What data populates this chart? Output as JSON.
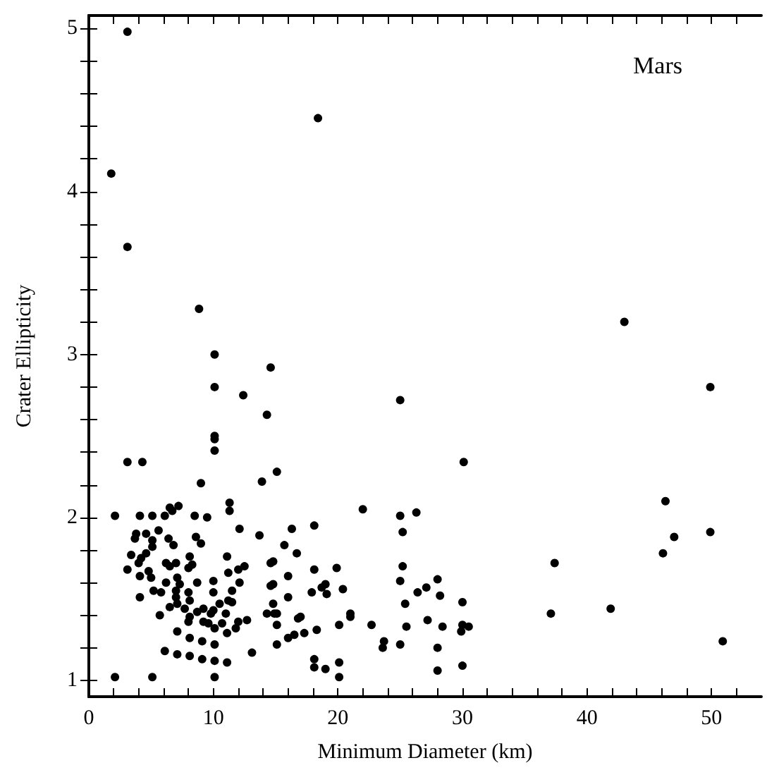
{
  "chart_data": {
    "type": "scatter",
    "xlabel": "Minimum Diameter (km)",
    "ylabel": "Crater Ellipticity",
    "annotations": [
      "Mars"
    ],
    "xlim": [
      0,
      54
    ],
    "ylim": [
      0.9,
      5.08
    ],
    "xticks": [
      0,
      {
        "value": 2,
        "label": null
      },
      {
        "value": 4,
        "label": null
      },
      {
        "value": 6,
        "label": null
      },
      {
        "value": 8,
        "label": null
      },
      10,
      {
        "value": 12,
        "label": null
      },
      {
        "value": 14,
        "label": null
      },
      {
        "value": 16,
        "label": null
      },
      {
        "value": 18,
        "label": null
      },
      20,
      {
        "value": 22,
        "label": null
      },
      {
        "value": 24,
        "label": null
      },
      {
        "value": 26,
        "label": null
      },
      {
        "value": 28,
        "label": null
      },
      30,
      {
        "value": 32,
        "label": null
      },
      {
        "value": 34,
        "label": null
      },
      {
        "value": 36,
        "label": null
      },
      {
        "value": 38,
        "label": null
      },
      40,
      {
        "value": 42,
        "label": null
      },
      {
        "value": 44,
        "label": null
      },
      {
        "value": 46,
        "label": null
      },
      {
        "value": 48,
        "label": null
      },
      50,
      {
        "value": 52,
        "label": null
      }
    ],
    "yticks": [
      1,
      {
        "value": 1.2,
        "label": null
      },
      {
        "value": 1.4,
        "label": null
      },
      {
        "value": 1.6,
        "label": null
      },
      {
        "value": 1.8,
        "label": null
      },
      2,
      {
        "value": 2.2,
        "label": null
      },
      {
        "value": 2.4,
        "label": null
      },
      {
        "value": 2.6,
        "label": null
      },
      {
        "value": 2.8,
        "label": null
      },
      3,
      {
        "value": 3.2,
        "label": null
      },
      {
        "value": 3.4,
        "label": null
      },
      {
        "value": 3.6,
        "label": null
      },
      {
        "value": 3.8,
        "label": null
      },
      4,
      {
        "value": 4.2,
        "label": null
      },
      {
        "value": 4.4,
        "label": null
      },
      {
        "value": 4.6,
        "label": null
      },
      {
        "value": 4.8,
        "label": null
      },
      5
    ],
    "grid": false,
    "marker": "circle",
    "series": [
      {
        "color": "#000000",
        "x": [
          9.0,
          13.9,
          2.1,
          4.1,
          5.1,
          6.1,
          6.5,
          6.7,
          7.2,
          8.5,
          9.5,
          11.3,
          11.3,
          12.1,
          13.7,
          3.8,
          3.7,
          4.6,
          5.1,
          5.6,
          5.1,
          6.4,
          6.8,
          8.6,
          9.0,
          3.4,
          4.2,
          4.6,
          3.1,
          4.0,
          4.1,
          4.8,
          5.0,
          6.2,
          6.5,
          7.0,
          6.2,
          7.1,
          7.3,
          8.1,
          8.0,
          8.3,
          8.7,
          10.0,
          10.0,
          11.1,
          11.2,
          11.5,
          12.1,
          12.0,
          12.5,
          4.1,
          5.2,
          5.8,
          7.0,
          7.0,
          8.0,
          8.1,
          6.5,
          7.1,
          7.7,
          8.7,
          9.2,
          8.1,
          8.0,
          9.2,
          9.8,
          10.0,
          10.5,
          11.0,
          11.2,
          11.5,
          9.6,
          10.1,
          10.7,
          11.1,
          11.8,
          12.0,
          12.7,
          5.7,
          7.1,
          8.1,
          9.1,
          10.1,
          6.1,
          7.1,
          8.1,
          9.1,
          10.1,
          11.1,
          13.1,
          2.1,
          5.1,
          10.1,
          14.6,
          14.8,
          14.8,
          14.6,
          14.8,
          14.3,
          14.9,
          15.1,
          15.1,
          15.1,
          15.7,
          16.3,
          16.7,
          16.0,
          16.0,
          16.0,
          16.5,
          17.3,
          16.8,
          17.0,
          18.1,
          18.1,
          17.9,
          18.3,
          18.1,
          18.1,
          19.0,
          18.7,
          19.0,
          19.1,
          19.9,
          20.4,
          20.1,
          20.1,
          20.1,
          21.0,
          21.0,
          22.0,
          22.7,
          23.7,
          23.6,
          25.0,
          25.2,
          26.3,
          25.2,
          25.0,
          25.4,
          25.5,
          25.0,
          26.4,
          27.1,
          27.2,
          28.0,
          28.2,
          28.4,
          28.0,
          28.0,
          30.0,
          30.0,
          29.9,
          30.5,
          30.0,
          15.1,
          10.1,
          10.1,
          10.1,
          10.1,
          10.1,
          3.1,
          4.3,
          8.85,
          12.4,
          14.6,
          14.3,
          18.4,
          1.8,
          3.1,
          3.1,
          49.9,
          46.3,
          47.0,
          49.9,
          46.1,
          37.4,
          37.1,
          41.9,
          50.9,
          43.0,
          25.0,
          30.1
        ],
        "values": [
          2.21,
          2.22,
          2.01,
          2.01,
          2.01,
          2.01,
          2.06,
          2.04,
          2.07,
          2.01,
          2.0,
          2.09,
          2.04,
          1.93,
          1.89,
          1.9,
          1.87,
          1.9,
          1.86,
          1.92,
          1.82,
          1.87,
          1.83,
          1.88,
          1.84,
          1.77,
          1.75,
          1.78,
          1.68,
          1.72,
          1.64,
          1.67,
          1.63,
          1.72,
          1.7,
          1.72,
          1.6,
          1.63,
          1.59,
          1.76,
          1.69,
          1.71,
          1.6,
          1.61,
          1.54,
          1.76,
          1.66,
          1.55,
          1.6,
          1.68,
          1.7,
          1.51,
          1.55,
          1.54,
          1.55,
          1.51,
          1.54,
          1.49,
          1.45,
          1.47,
          1.44,
          1.42,
          1.44,
          1.39,
          1.36,
          1.36,
          1.41,
          1.43,
          1.47,
          1.41,
          1.49,
          1.48,
          1.35,
          1.32,
          1.35,
          1.29,
          1.32,
          1.36,
          1.37,
          1.4,
          1.3,
          1.26,
          1.24,
          1.22,
          1.18,
          1.16,
          1.15,
          1.13,
          1.12,
          1.11,
          1.17,
          1.02,
          1.02,
          1.02,
          1.72,
          1.59,
          1.73,
          1.58,
          1.47,
          1.41,
          1.41,
          1.41,
          1.34,
          1.22,
          1.83,
          1.93,
          1.78,
          1.64,
          1.51,
          1.26,
          1.28,
          1.29,
          1.38,
          1.39,
          1.95,
          1.68,
          1.54,
          1.31,
          1.13,
          1.08,
          1.07,
          1.57,
          1.59,
          1.53,
          1.69,
          1.56,
          1.11,
          1.02,
          1.34,
          1.41,
          1.39,
          2.05,
          1.34,
          1.24,
          1.2,
          2.01,
          1.91,
          2.03,
          1.7,
          1.61,
          1.47,
          1.33,
          1.22,
          1.54,
          1.57,
          1.37,
          1.62,
          1.52,
          1.33,
          1.2,
          1.06,
          1.48,
          1.34,
          1.3,
          1.33,
          1.09,
          2.28,
          3.0,
          2.8,
          2.5,
          2.48,
          2.41,
          2.34,
          2.34,
          3.28,
          2.75,
          2.92,
          2.63,
          4.45,
          4.11,
          3.66,
          4.98,
          2.8,
          2.1,
          1.88,
          1.91,
          1.78,
          1.72,
          1.41,
          1.44,
          1.24,
          3.2,
          2.72,
          2.34
        ]
      }
    ]
  }
}
